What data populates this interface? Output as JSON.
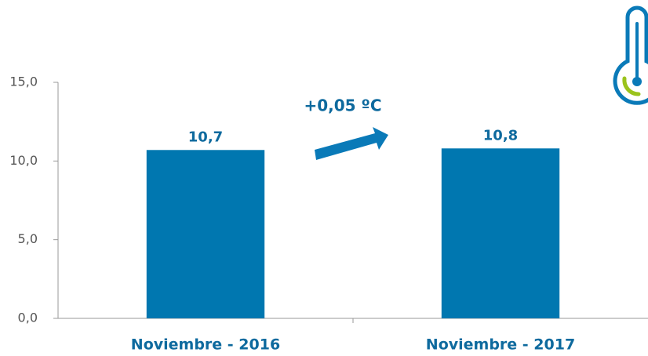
{
  "chart_data": {
    "type": "bar",
    "categories": [
      "Noviembre - 2016",
      "Noviembre - 2017"
    ],
    "values": [
      10.7,
      10.8
    ],
    "value_labels": [
      "10,7",
      "10,8"
    ],
    "color": "#0077b0",
    "ylim": [
      0,
      15
    ],
    "yticks": [
      {
        "value": 0,
        "label": "0,0"
      },
      {
        "value": 5,
        "label": "5,0"
      },
      {
        "value": 10,
        "label": "10,0"
      },
      {
        "value": 15,
        "label": "15,0"
      }
    ],
    "annotation": "+0,05 ºC"
  }
}
